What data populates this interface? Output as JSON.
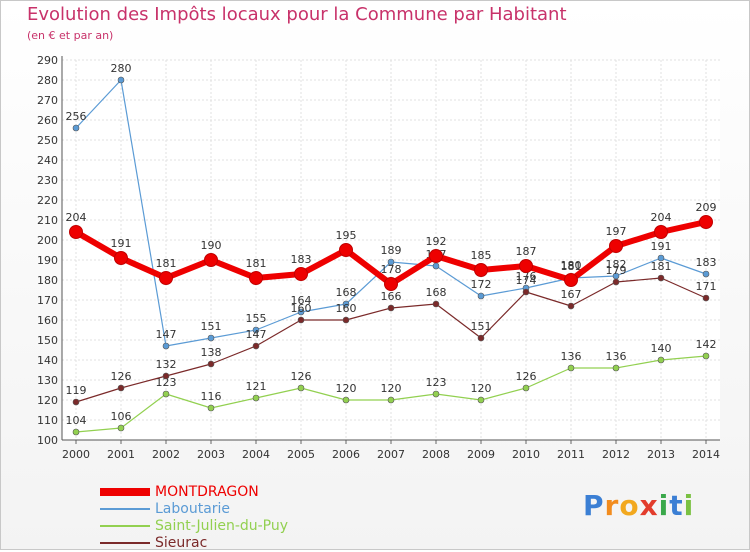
{
  "header": {
    "title": "Evolution des Impôts locaux pour la Commune par Habitant",
    "subtitle": "(en € et par an)"
  },
  "logo": {
    "letters": [
      "P",
      "r",
      "o",
      "x",
      "i",
      "t",
      "i"
    ],
    "text": "Proxiti"
  },
  "chart_data": {
    "type": "line",
    "title": "Evolution des Impôts locaux pour la Commune par Habitant",
    "subtitle": "(en € et par an)",
    "xlabel": "",
    "ylabel": "",
    "x": [
      "2000",
      "2001",
      "2002",
      "2003",
      "2004",
      "2005",
      "2006",
      "2007",
      "2008",
      "2009",
      "2010",
      "2011",
      "2012",
      "2013",
      "2014"
    ],
    "ylim": [
      100,
      290
    ],
    "yticks": [
      100,
      110,
      120,
      130,
      140,
      150,
      160,
      170,
      180,
      190,
      200,
      210,
      220,
      230,
      240,
      250,
      260,
      270,
      280,
      290
    ],
    "grid": true,
    "legend_position": "bottom-left",
    "series": [
      {
        "name": "MONTDRAGON",
        "color": "#ee0000",
        "values": [
          204,
          191,
          181,
          190,
          181,
          183,
          195,
          178,
          192,
          185,
          187,
          180,
          197,
          204,
          209
        ]
      },
      {
        "name": "Laboutarie",
        "color": "#5b9bd5",
        "values": [
          256,
          280,
          147,
          151,
          155,
          164,
          168,
          189,
          187,
          172,
          176,
          181,
          182,
          191,
          183
        ]
      },
      {
        "name": "Saint-Julien-du-Puy",
        "color": "#92d050",
        "values": [
          104,
          106,
          123,
          116,
          121,
          126,
          120,
          120,
          123,
          120,
          126,
          136,
          136,
          140,
          142
        ]
      },
      {
        "name": "Sieurac",
        "color": "#7b2a2a",
        "values": [
          119,
          126,
          132,
          138,
          147,
          160,
          160,
          166,
          168,
          151,
          174,
          167,
          179,
          181,
          171
        ]
      }
    ]
  }
}
